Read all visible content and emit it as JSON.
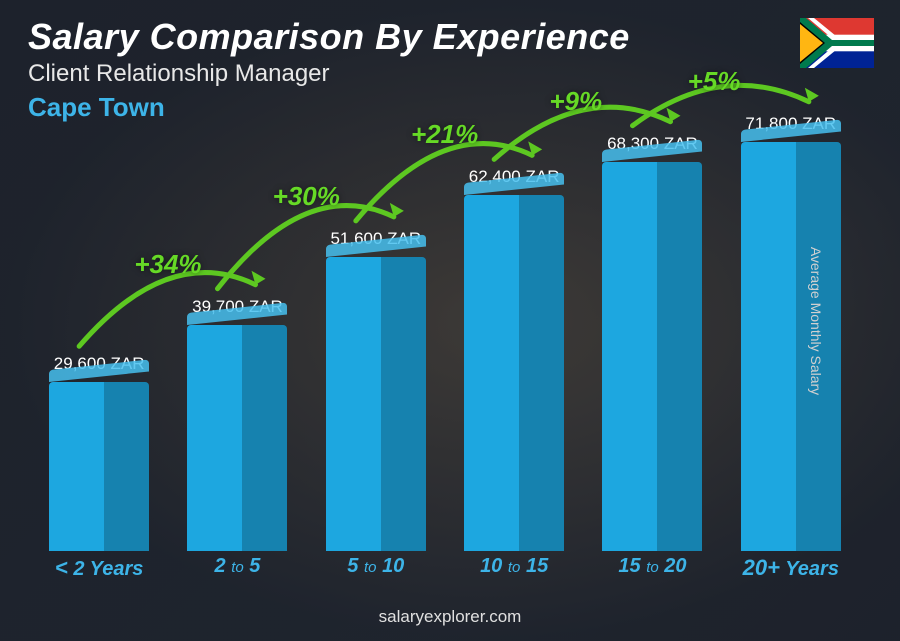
{
  "header": {
    "title": "Salary Comparison By Experience",
    "subtitle": "Client Relationship Manager",
    "location": "Cape Town",
    "location_color": "#3db4e8"
  },
  "ylabel": "Average Monthly Salary",
  "footer": "salaryexplorer.com",
  "currency": "ZAR",
  "chart": {
    "type": "bar",
    "bar_color": "#1da7e0",
    "bar_top_color": "#46c0ef",
    "xlabel_color": "#3db4e8",
    "pct_color": "#66d926",
    "arc_color": "#5dc821",
    "max_value": 80000,
    "bars": [
      {
        "label_pre": "<",
        "label_num": "2",
        "label_suf": "Years",
        "value": 29600,
        "display": "29,600 ZAR"
      },
      {
        "label_pre": "",
        "label_num": "2",
        "label_to": "to",
        "label_num2": "5",
        "value": 39700,
        "display": "39,700 ZAR",
        "pct": "+34%"
      },
      {
        "label_pre": "",
        "label_num": "5",
        "label_to": "to",
        "label_num2": "10",
        "value": 51600,
        "display": "51,600 ZAR",
        "pct": "+30%"
      },
      {
        "label_pre": "",
        "label_num": "10",
        "label_to": "to",
        "label_num2": "15",
        "value": 62400,
        "display": "62,400 ZAR",
        "pct": "+21%"
      },
      {
        "label_pre": "",
        "label_num": "15",
        "label_to": "to",
        "label_num2": "20",
        "value": 68300,
        "display": "68,300 ZAR",
        "pct": "+9%"
      },
      {
        "label_pre": "",
        "label_num": "20+",
        "label_suf": "Years",
        "value": 71800,
        "display": "71,800 ZAR",
        "pct": "+5%"
      }
    ]
  },
  "flag": {
    "country": "South Africa"
  }
}
